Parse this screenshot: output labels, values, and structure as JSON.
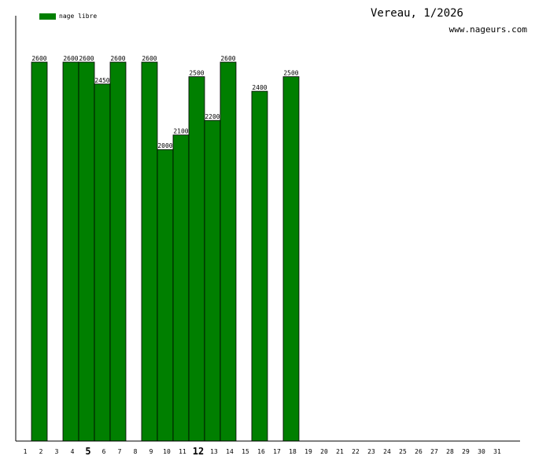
{
  "header": {
    "title": "Vereau, 1/2026",
    "site": "www.nageurs.com"
  },
  "colors": {
    "bar": "#007f00",
    "axis": "#000000"
  },
  "chart_data": {
    "type": "bar",
    "categories": [
      "1",
      "2",
      "3",
      "4",
      "5",
      "6",
      "7",
      "8",
      "9",
      "10",
      "11",
      "12",
      "13",
      "14",
      "15",
      "16",
      "17",
      "18",
      "19",
      "20",
      "21",
      "22",
      "23",
      "24",
      "25",
      "26",
      "27",
      "28",
      "29",
      "30",
      "31"
    ],
    "series": [
      {
        "name": "nage libre",
        "values": [
          null,
          2600,
          null,
          2600,
          2600,
          2450,
          2600,
          null,
          2600,
          2000,
          2100,
          2500,
          2200,
          2600,
          null,
          2400,
          null,
          2500,
          null,
          null,
          null,
          null,
          null,
          null,
          null,
          null,
          null,
          null,
          null,
          null,
          null
        ]
      }
    ],
    "highlight_ticks": [
      "5",
      "12"
    ],
    "ylim": [
      0,
      2600
    ],
    "grid": false,
    "legend": "top-left"
  }
}
